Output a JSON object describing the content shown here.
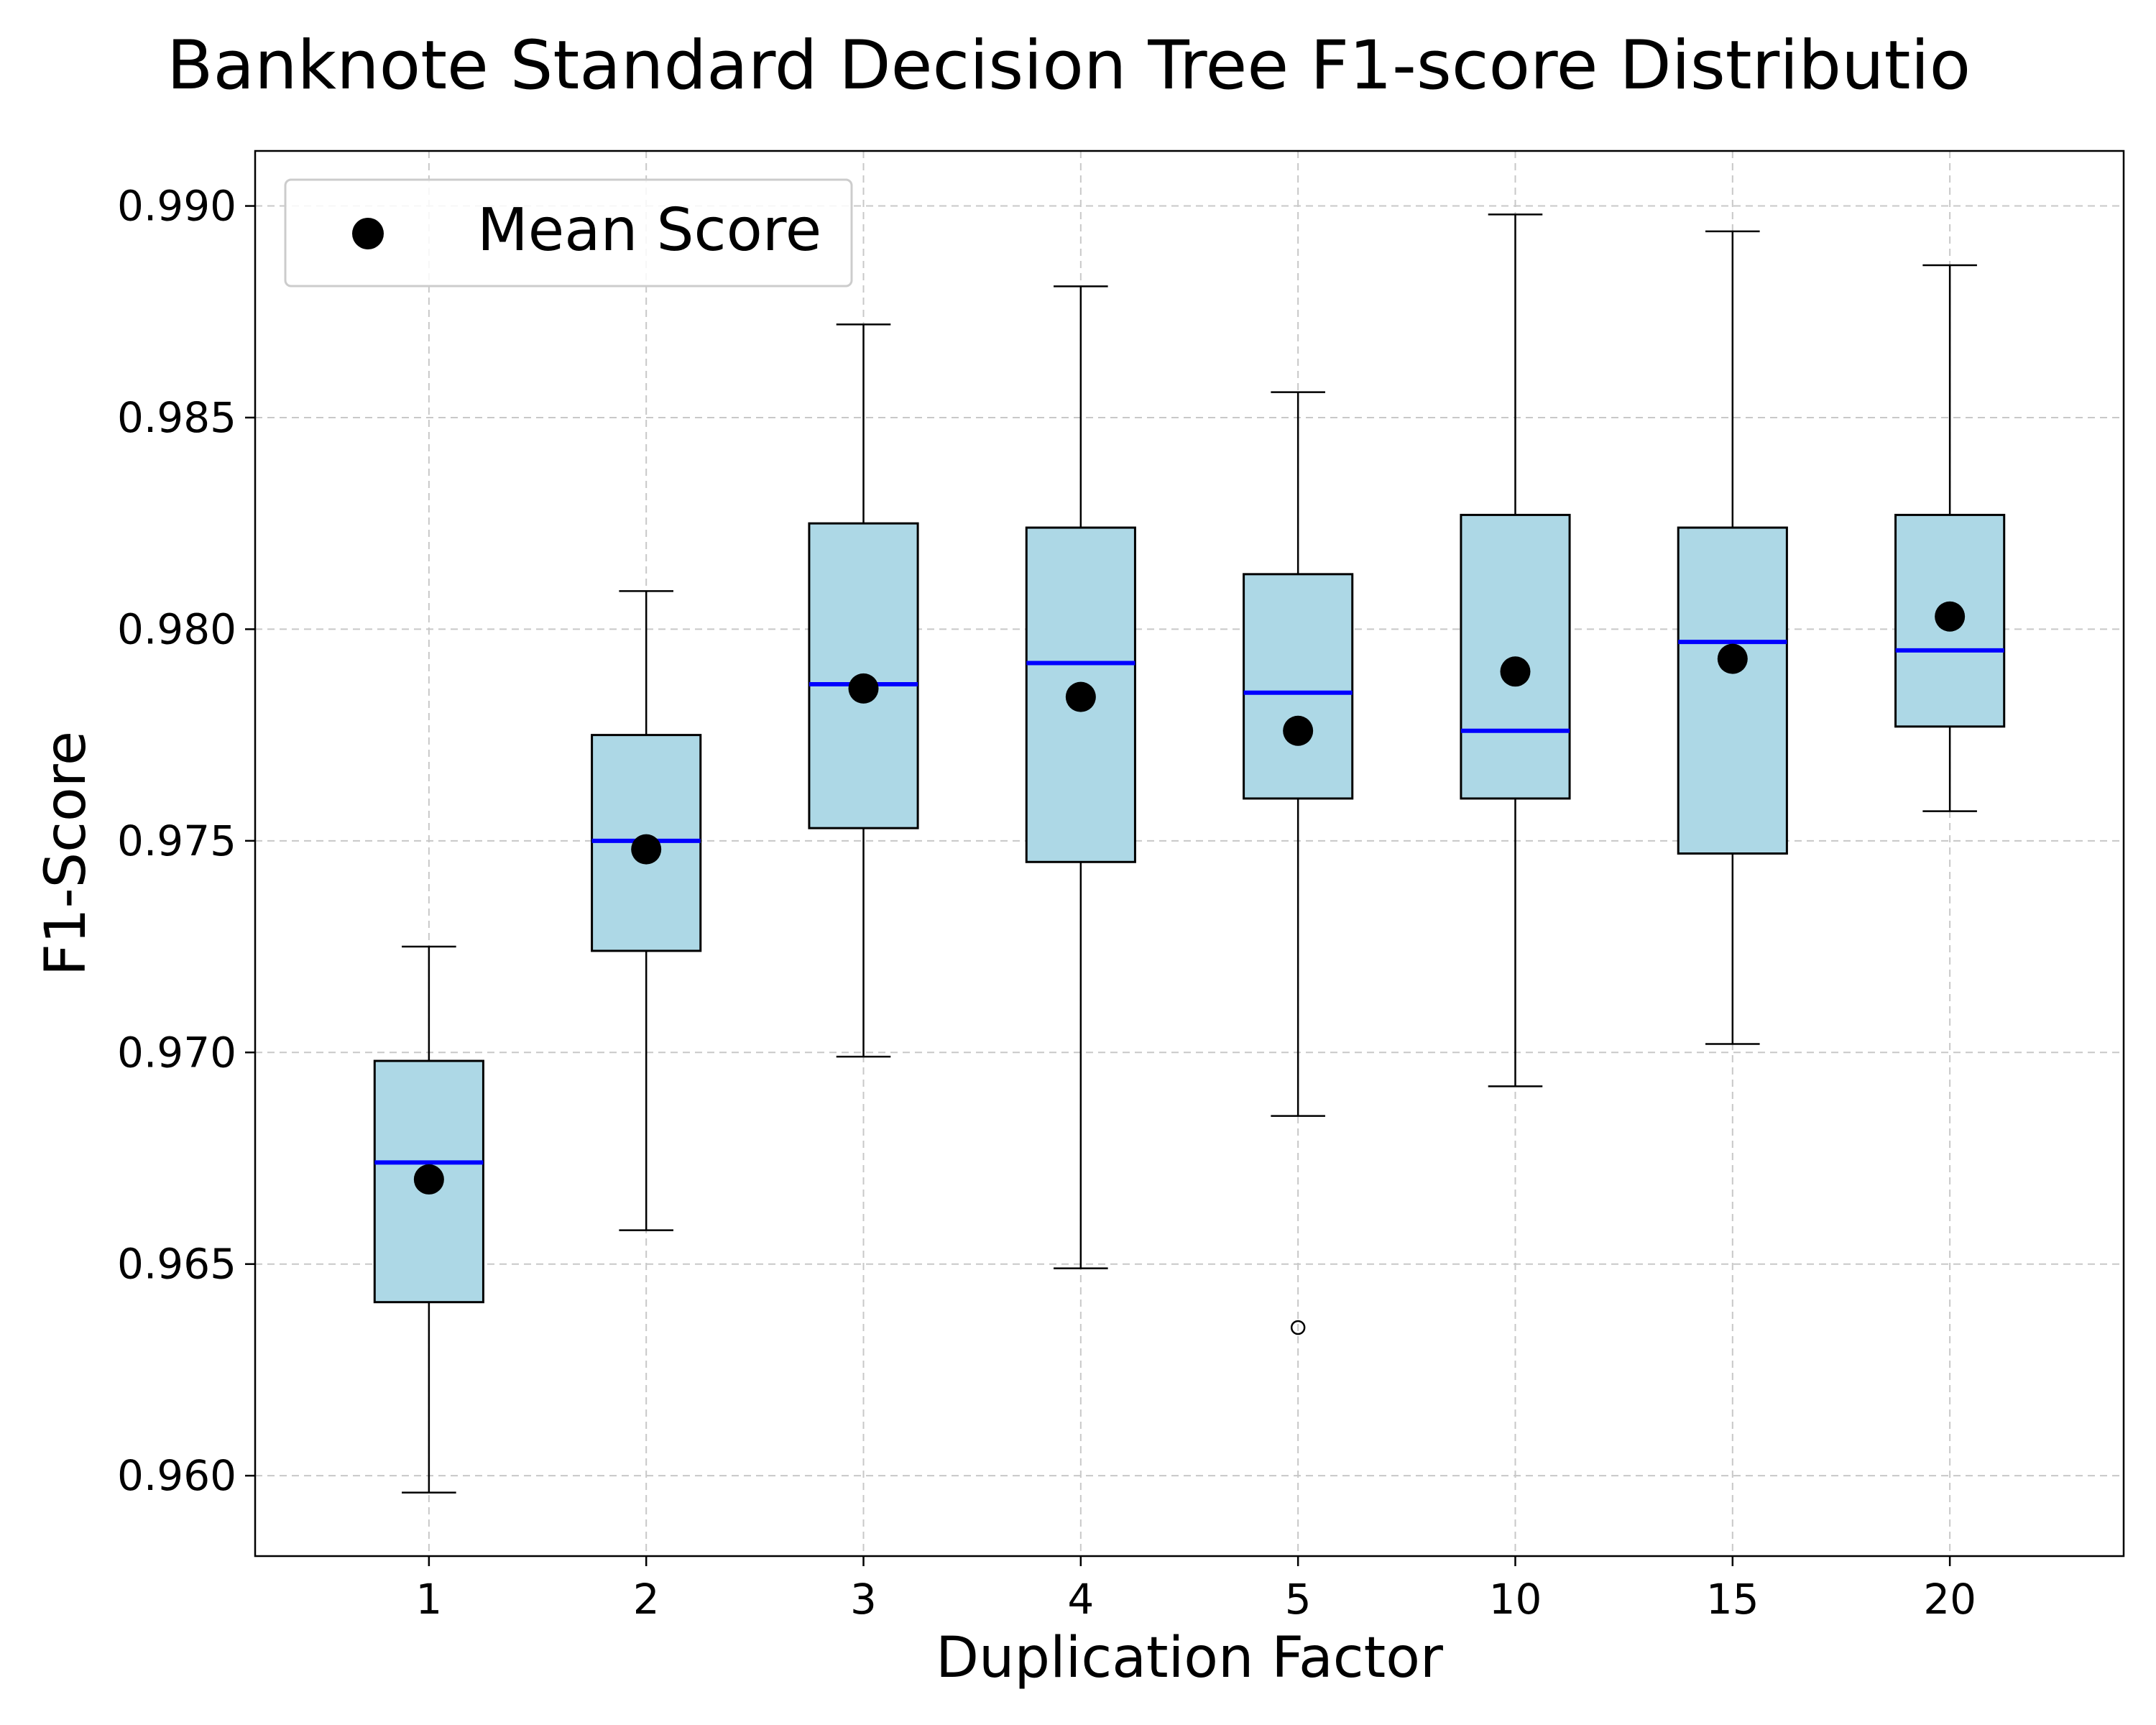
{
  "chart_data": {
    "type": "box",
    "title": "Banknote Standard Decision Tree F1-score Distributio",
    "xlabel": "Duplication Factor",
    "ylabel": "F1-Score",
    "ylim": [
      0.9581,
      0.9913
    ],
    "yticks": [
      "0.960",
      "0.965",
      "0.970",
      "0.975",
      "0.980",
      "0.985",
      "0.990"
    ],
    "grid": true,
    "legend": {
      "position": "top-left",
      "entries": [
        "Mean Score"
      ]
    },
    "categories": [
      "1",
      "2",
      "3",
      "4",
      "5",
      "10",
      "15",
      "20"
    ],
    "boxes": [
      {
        "category": "1",
        "whisker_low": 0.9596,
        "q1": 0.9641,
        "median": 0.9674,
        "q3": 0.9698,
        "whisker_high": 0.9725,
        "mean": 0.967,
        "outliers": []
      },
      {
        "category": "2",
        "whisker_low": 0.9658,
        "q1": 0.9724,
        "median": 0.975,
        "q3": 0.9775,
        "whisker_high": 0.9809,
        "mean": 0.9748,
        "outliers": []
      },
      {
        "category": "3",
        "whisker_low": 0.9699,
        "q1": 0.9753,
        "median": 0.9787,
        "q3": 0.9825,
        "whisker_high": 0.9872,
        "mean": 0.9786,
        "outliers": []
      },
      {
        "category": "4",
        "whisker_low": 0.9649,
        "q1": 0.9745,
        "median": 0.9792,
        "q3": 0.9824,
        "whisker_high": 0.9881,
        "mean": 0.9784,
        "outliers": []
      },
      {
        "category": "5",
        "whisker_low": 0.9685,
        "q1": 0.976,
        "median": 0.9785,
        "q3": 0.9813,
        "whisker_high": 0.9856,
        "mean": 0.9776,
        "outliers": [
          0.9635
        ]
      },
      {
        "category": "10",
        "whisker_low": 0.9692,
        "q1": 0.976,
        "median": 0.9776,
        "q3": 0.9827,
        "whisker_high": 0.9898,
        "mean": 0.979,
        "outliers": []
      },
      {
        "category": "15",
        "whisker_low": 0.9702,
        "q1": 0.9747,
        "median": 0.9797,
        "q3": 0.9824,
        "whisker_high": 0.9894,
        "mean": 0.9793,
        "outliers": []
      },
      {
        "category": "20",
        "whisker_low": 0.9757,
        "q1": 0.9777,
        "median": 0.9795,
        "q3": 0.9827,
        "whisker_high": 0.9886,
        "mean": 0.9803,
        "outliers": []
      }
    ],
    "colors": {
      "box_fill": "#add8e6",
      "median": "#0000ff",
      "mean_marker": "#000000",
      "grid": "#c8c8c8",
      "axes": "#000000"
    }
  }
}
